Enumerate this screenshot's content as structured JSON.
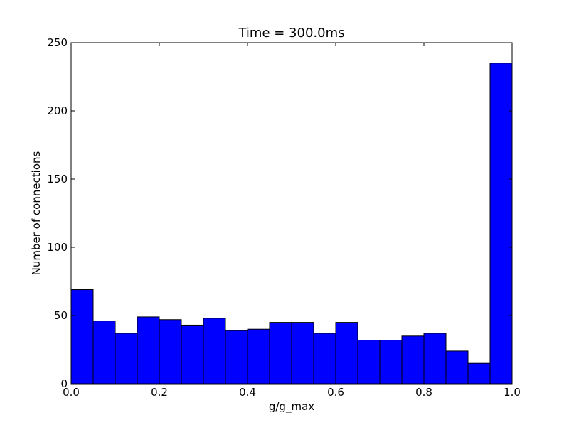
{
  "chart_data": {
    "type": "bar",
    "title": "Time = 300.0ms",
    "xlabel": "g/g_max",
    "ylabel": "Number of connections",
    "xlim": [
      0.0,
      1.0
    ],
    "ylim": [
      0,
      250
    ],
    "grid": false,
    "legend": "none",
    "bar_color": "#0000ff",
    "edge_color": "#000000",
    "bin_width": 0.05,
    "bins": [
      {
        "x0": 0.0,
        "x1": 0.05,
        "count": 69
      },
      {
        "x0": 0.05,
        "x1": 0.1,
        "count": 46
      },
      {
        "x0": 0.1,
        "x1": 0.15,
        "count": 37
      },
      {
        "x0": 0.15,
        "x1": 0.2,
        "count": 49
      },
      {
        "x0": 0.2,
        "x1": 0.25,
        "count": 47
      },
      {
        "x0": 0.25,
        "x1": 0.3,
        "count": 43
      },
      {
        "x0": 0.3,
        "x1": 0.35,
        "count": 48
      },
      {
        "x0": 0.35,
        "x1": 0.4,
        "count": 39
      },
      {
        "x0": 0.4,
        "x1": 0.45,
        "count": 40
      },
      {
        "x0": 0.45,
        "x1": 0.5,
        "count": 45
      },
      {
        "x0": 0.5,
        "x1": 0.55,
        "count": 45
      },
      {
        "x0": 0.55,
        "x1": 0.6,
        "count": 37
      },
      {
        "x0": 0.6,
        "x1": 0.65,
        "count": 45
      },
      {
        "x0": 0.65,
        "x1": 0.7,
        "count": 32
      },
      {
        "x0": 0.7,
        "x1": 0.75,
        "count": 32
      },
      {
        "x0": 0.75,
        "x1": 0.8,
        "count": 35
      },
      {
        "x0": 0.8,
        "x1": 0.85,
        "count": 37
      },
      {
        "x0": 0.85,
        "x1": 0.9,
        "count": 24
      },
      {
        "x0": 0.9,
        "x1": 0.95,
        "count": 15
      },
      {
        "x0": 0.95,
        "x1": 1.0,
        "count": 235
      }
    ],
    "x_ticks": [
      0.0,
      0.2,
      0.4,
      0.6,
      0.8,
      1.0
    ],
    "x_tick_labels": [
      "0.0",
      "0.2",
      "0.4",
      "0.6",
      "0.8",
      "1.0"
    ],
    "y_ticks": [
      0,
      50,
      100,
      150,
      200,
      250
    ],
    "y_tick_labels": [
      "0",
      "50",
      "100",
      "150",
      "200",
      "250"
    ]
  }
}
